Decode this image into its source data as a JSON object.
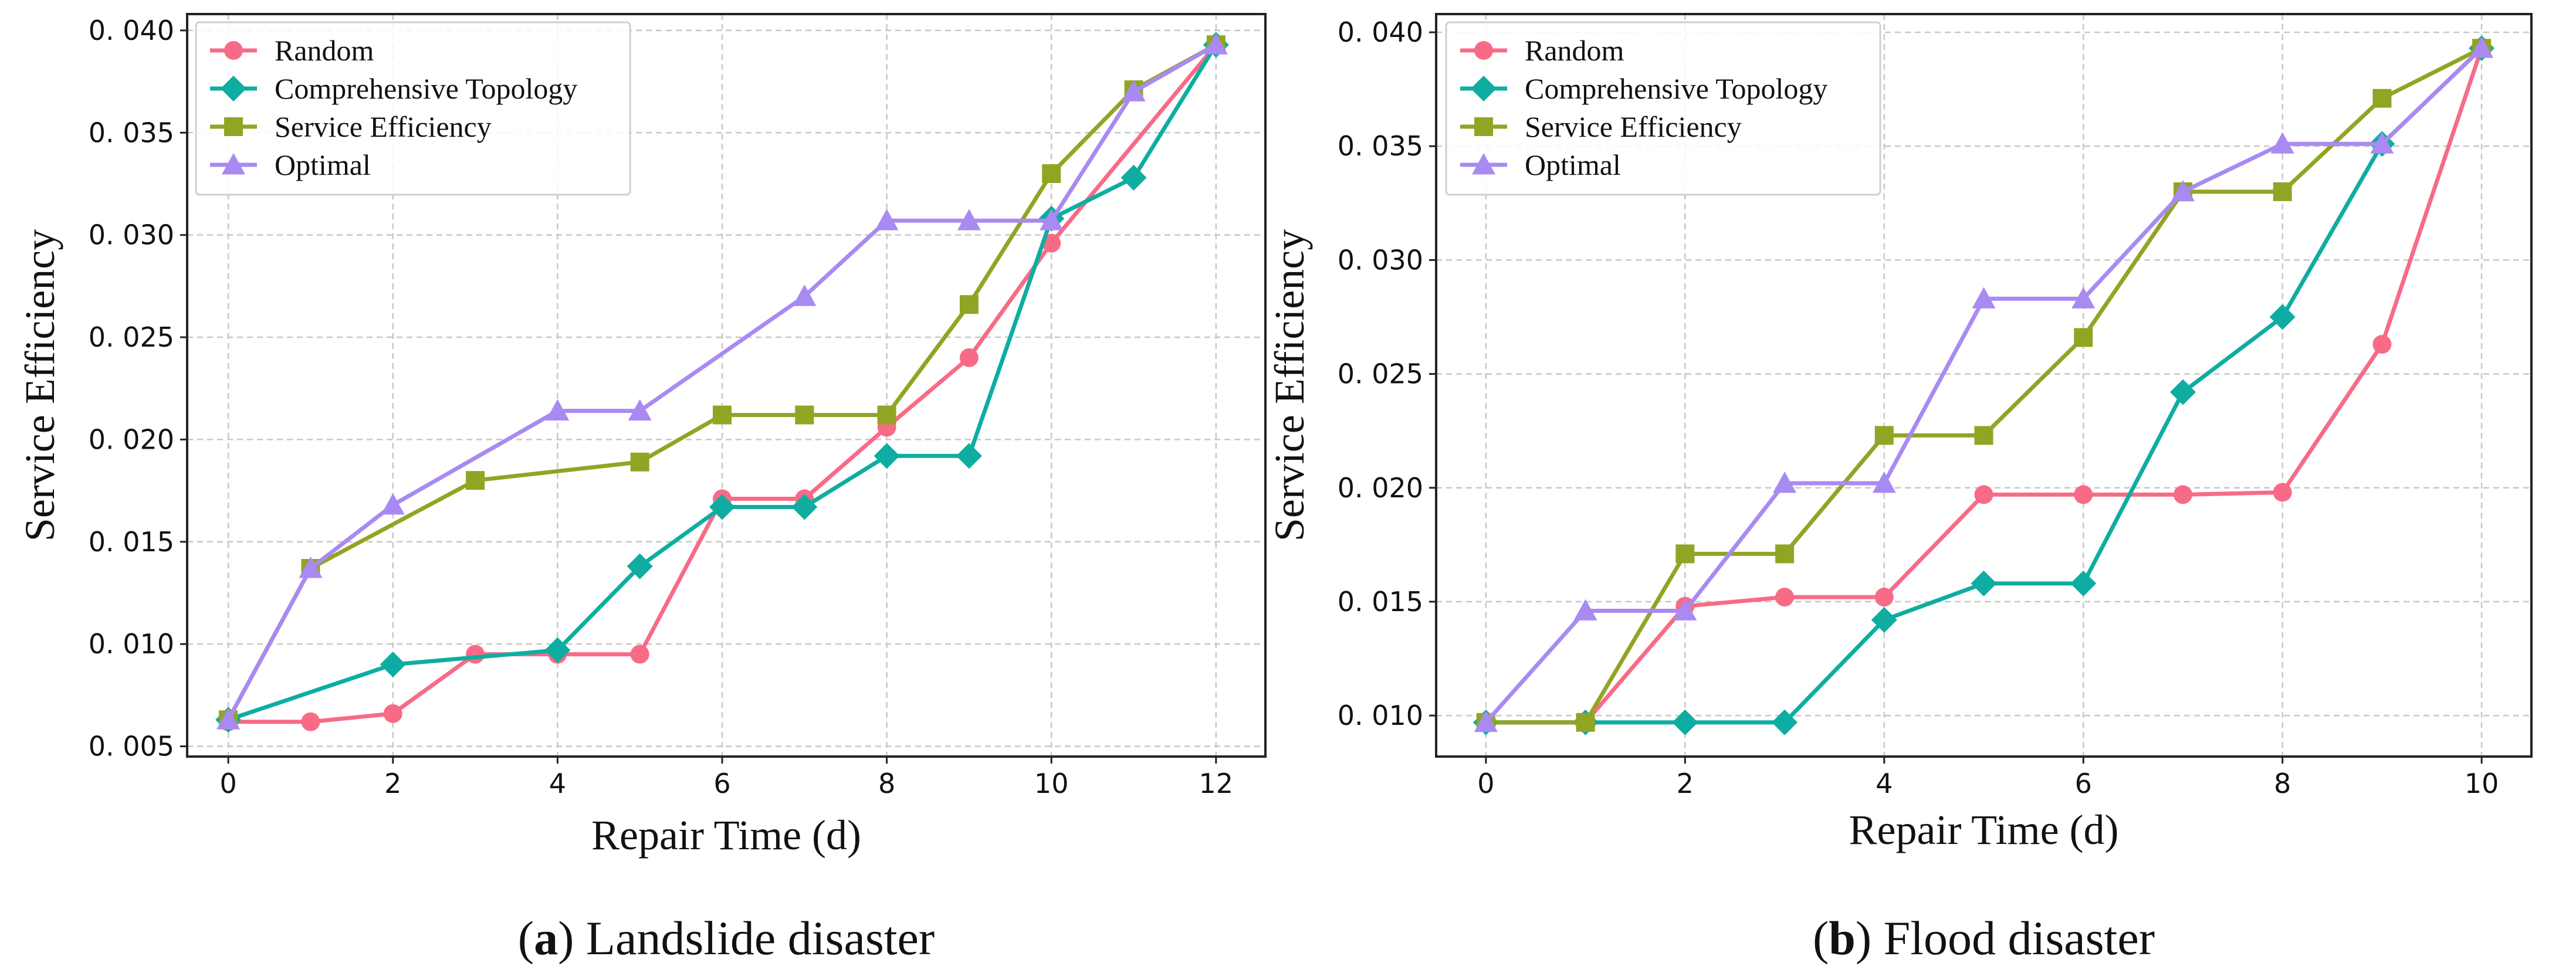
{
  "colors": {
    "Random": "#f76b87",
    "Comprehensive Topology": "#0fada1",
    "Service Efficiency": "#92a424",
    "Optimal": "#a98af2"
  },
  "markers": {
    "Random": "circle",
    "Comprehensive Topology": "diamond",
    "Service Efficiency": "square",
    "Optimal": "triangle"
  },
  "chart_data": [
    {
      "id": "a",
      "type": "line",
      "caption_letter": "a",
      "caption_text": " Landslide disaster",
      "xlabel": "Repair Time (d)",
      "ylabel": "Service Efficiency",
      "xlim": [
        -0.5,
        12.6
      ],
      "ylim": [
        0.0045,
        0.0408
      ],
      "xticks": [
        0,
        2,
        4,
        6,
        8,
        10,
        12
      ],
      "yticks": [
        0.005,
        0.01,
        0.015,
        0.02,
        0.025,
        0.03,
        0.035,
        0.04
      ],
      "ytick_labels": [
        "0. 005",
        "0. 010",
        "0. 015",
        "0. 020",
        "0. 025",
        "0. 030",
        "0. 035",
        "0. 040"
      ],
      "legend": [
        "Random",
        "Comprehensive Topology",
        "Service Efficiency",
        "Optimal"
      ],
      "grid": true,
      "series": [
        {
          "name": "Random",
          "x": [
            0,
            1,
            2,
            3,
            4,
            5,
            6,
            7,
            8,
            9,
            10,
            12
          ],
          "values": [
            0.0062,
            0.0062,
            0.0066,
            0.0095,
            0.0095,
            0.0095,
            0.0171,
            0.0171,
            0.0206,
            0.024,
            0.0296,
            0.0393
          ]
        },
        {
          "name": "Comprehensive Topology",
          "x": [
            0,
            2,
            4,
            5,
            6,
            7,
            8,
            9,
            10,
            11,
            12
          ],
          "values": [
            0.0063,
            0.009,
            0.0097,
            0.0138,
            0.0167,
            0.0167,
            0.0192,
            0.0192,
            0.0308,
            0.0328,
            0.0393
          ]
        },
        {
          "name": "Service Efficiency",
          "x": [
            0,
            1,
            3,
            5,
            6,
            7,
            8,
            9,
            10,
            11,
            12
          ],
          "values": [
            0.0063,
            0.0137,
            0.018,
            0.0189,
            0.0212,
            0.0212,
            0.0212,
            0.0266,
            0.033,
            0.0371,
            0.0393
          ]
        },
        {
          "name": "Optimal",
          "x": [
            0,
            1,
            2,
            4,
            5,
            7,
            8,
            9,
            10,
            11,
            12
          ],
          "values": [
            0.0063,
            0.0137,
            0.0168,
            0.0214,
            0.0214,
            0.027,
            0.0307,
            0.0307,
            0.0307,
            0.037,
            0.0393
          ]
        }
      ]
    },
    {
      "id": "b",
      "type": "line",
      "caption_letter": "b",
      "caption_text": " Flood disaster",
      "xlabel": "Repair Time (d)",
      "ylabel": "Service Efficiency",
      "xlim": [
        -0.5,
        10.5
      ],
      "ylim": [
        0.0082,
        0.0408
      ],
      "xticks": [
        0,
        2,
        4,
        6,
        8,
        10
      ],
      "yticks": [
        0.01,
        0.015,
        0.02,
        0.025,
        0.03,
        0.035,
        0.04
      ],
      "ytick_labels": [
        "0. 010",
        "0. 015",
        "0. 020",
        "0. 025",
        "0. 030",
        "0. 035",
        "0. 040"
      ],
      "legend": [
        "Random",
        "Comprehensive Topology",
        "Service Efficiency",
        "Optimal"
      ],
      "grid": true,
      "series": [
        {
          "name": "Random",
          "x": [
            0,
            1,
            2,
            3,
            4,
            5,
            6,
            7,
            8,
            9,
            10
          ],
          "values": [
            0.0097,
            0.0097,
            0.0148,
            0.0152,
            0.0152,
            0.0197,
            0.0197,
            0.0197,
            0.0198,
            0.0263,
            0.0393
          ]
        },
        {
          "name": "Comprehensive Topology",
          "x": [
            0,
            1,
            2,
            3,
            4,
            5,
            6,
            7,
            8,
            9,
            10
          ],
          "values": [
            0.0097,
            0.0097,
            0.0097,
            0.0097,
            0.0142,
            0.0158,
            0.0158,
            0.0242,
            0.0275,
            0.0351,
            0.0393
          ]
        },
        {
          "name": "Service Efficiency",
          "x": [
            0,
            1,
            2,
            3,
            4,
            5,
            6,
            7,
            8,
            9,
            10
          ],
          "values": [
            0.0097,
            0.0097,
            0.0171,
            0.0171,
            0.0223,
            0.0223,
            0.0266,
            0.033,
            0.033,
            0.0371,
            0.0393
          ]
        },
        {
          "name": "Optimal",
          "x": [
            0,
            1,
            2,
            3,
            4,
            5,
            6,
            7,
            8,
            9,
            10
          ],
          "values": [
            0.0097,
            0.0146,
            0.0146,
            0.0202,
            0.0202,
            0.0283,
            0.0283,
            0.033,
            0.0351,
            0.0351,
            0.0393
          ]
        }
      ]
    }
  ]
}
